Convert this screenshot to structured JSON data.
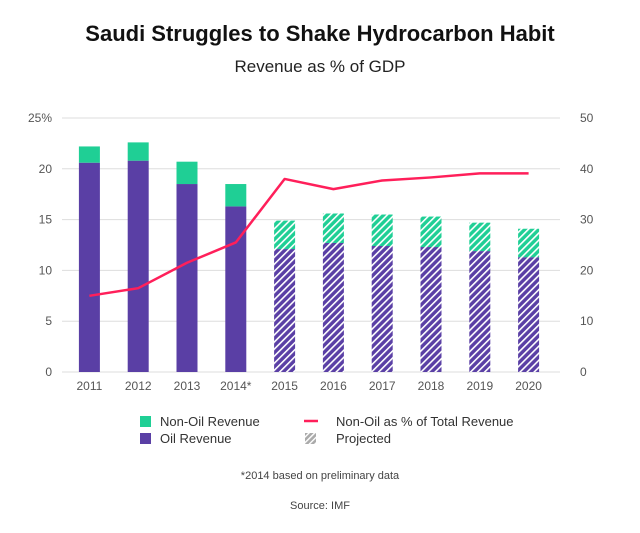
{
  "chart_data": {
    "type": "bar",
    "title": "Saudi Struggles to Shake Hydrocarbon Habit",
    "subtitle": "Revenue as % of GDP",
    "categories": [
      "2011",
      "2012",
      "2013",
      "2014*",
      "2015",
      "2016",
      "2017",
      "2018",
      "2019",
      "2020"
    ],
    "series": [
      {
        "name": "Oil Revenue",
        "axis": "left",
        "stack": "revenue",
        "color": "#5a3fa5",
        "values": [
          20.6,
          20.8,
          18.5,
          16.3,
          12.1,
          12.7,
          12.4,
          12.3,
          11.9,
          11.3
        ]
      },
      {
        "name": "Non-Oil Revenue",
        "axis": "left",
        "stack": "revenue",
        "color": "#1fcf95",
        "values": [
          1.6,
          1.8,
          2.2,
          2.2,
          2.8,
          2.9,
          3.1,
          3.0,
          2.8,
          2.8
        ]
      },
      {
        "name": "Non-Oil as % of Total Revenue",
        "type": "line",
        "axis": "right",
        "color": "#ff1f5a",
        "values": [
          15.0,
          16.5,
          21.5,
          25.5,
          38.0,
          36.0,
          37.7,
          38.3,
          39.1,
          39.1
        ]
      }
    ],
    "projected_from_index": 4,
    "projected_label": "Projected",
    "y_left": {
      "ylim": [
        0,
        25
      ],
      "ticks": [
        "0",
        "5",
        "10",
        "15",
        "20",
        "25%"
      ],
      "tick_values": [
        0,
        5,
        10,
        15,
        20,
        25
      ]
    },
    "y_right": {
      "ylim": [
        0,
        50
      ],
      "ticks": [
        "0",
        "10",
        "20",
        "30",
        "40",
        "50"
      ],
      "tick_values": [
        0,
        10,
        20,
        30,
        40,
        50
      ]
    },
    "grid": true,
    "legend_position": "bottom",
    "footnote": "*2014 based on preliminary data",
    "source": "Source: IMF"
  }
}
